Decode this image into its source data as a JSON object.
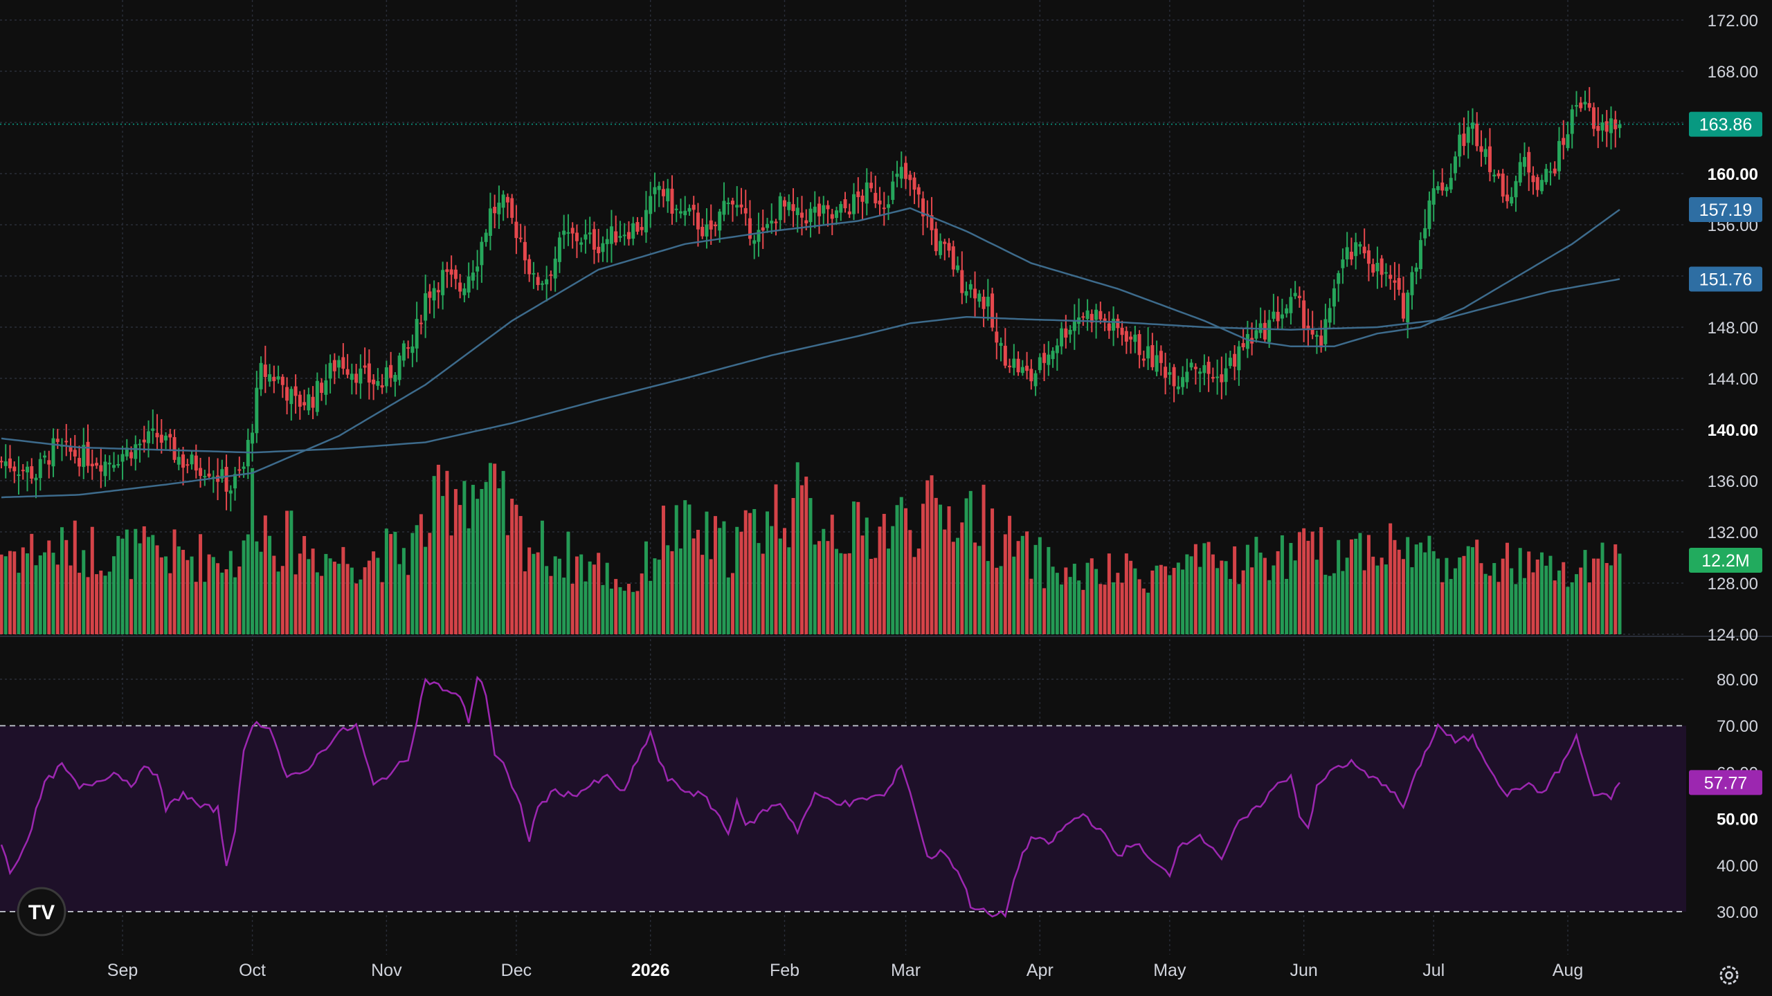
{
  "colors": {
    "background": "#0f0f0f",
    "grid": "#2a2e39",
    "up": "#26a65b",
    "down": "#e5484d",
    "sma_short": "#3d6b8c",
    "sma_long": "#3d6b8c",
    "rsi_line": "#9c27b0",
    "rsi_band": "#1e1029",
    "last_price_badge": "#089981",
    "volume_badge": "#22ab5e",
    "sma_badge": "#2e6ea3",
    "rsi_badge": "#9c27b0",
    "axis_text": "#d1d4dc"
  },
  "logo": {
    "text": "TV",
    "icon": "tradingview-logo-icon"
  },
  "settings": {
    "icon": "gear-icon"
  },
  "badges": {
    "last_price": "163.86",
    "sma_short": "157.19",
    "sma_long": "151.76",
    "volume": "12.2M",
    "rsi": "57.77"
  },
  "chart_data": {
    "type": "candlestick",
    "price_axis": {
      "ticks": [
        "172.00",
        "168.00",
        "164.00",
        "160.00",
        "156.00",
        "152.00",
        "148.00",
        "144.00",
        "140.00",
        "136.00",
        "132.00",
        "128.00",
        "124.00"
      ],
      "bold_ticks": [
        "160.00",
        "140.00"
      ],
      "ylim": [
        124,
        172
      ]
    },
    "time_axis": {
      "labels": [
        {
          "text": "Sep",
          "day": 30
        },
        {
          "text": "Oct",
          "day": 60
        },
        {
          "text": "Nov",
          "day": 91
        },
        {
          "text": "Dec",
          "day": 121
        },
        {
          "text": "2026",
          "day": 152,
          "bold": true
        },
        {
          "text": "Feb",
          "day": 183
        },
        {
          "text": "Mar",
          "day": 211
        },
        {
          "text": "Apr",
          "day": 242
        },
        {
          "text": "May",
          "day": 272
        },
        {
          "text": "Jun",
          "day": 303
        },
        {
          "text": "Jul",
          "day": 333
        },
        {
          "text": "Aug",
          "day": 364
        }
      ],
      "day_range": [
        2,
        376
      ]
    },
    "price_keypoints": [
      [
        3,
        137.5
      ],
      [
        10,
        136.5
      ],
      [
        14,
        138.5
      ],
      [
        20,
        138.0
      ],
      [
        26,
        137.5
      ],
      [
        32,
        138.5
      ],
      [
        38,
        139.5
      ],
      [
        44,
        137.5
      ],
      [
        50,
        137.0
      ],
      [
        55,
        135.5
      ],
      [
        58,
        137.0
      ],
      [
        60,
        140.5
      ],
      [
        62,
        144.5
      ],
      [
        66,
        144.0
      ],
      [
        70,
        142.0
      ],
      [
        74,
        142.5
      ],
      [
        80,
        145.5
      ],
      [
        86,
        144.0
      ],
      [
        90,
        143.5
      ],
      [
        94,
        145.5
      ],
      [
        97,
        146.5
      ],
      [
        100,
        150.5
      ],
      [
        104,
        152.0
      ],
      [
        108,
        151.0
      ],
      [
        112,
        153.5
      ],
      [
        115,
        157.0
      ],
      [
        118,
        157.5
      ],
      [
        122,
        155.0
      ],
      [
        125,
        151.5
      ],
      [
        128,
        152.0
      ],
      [
        132,
        155.0
      ],
      [
        136,
        155.0
      ],
      [
        140,
        154.5
      ],
      [
        145,
        155.5
      ],
      [
        150,
        156.0
      ],
      [
        154,
        159.0
      ],
      [
        158,
        157.0
      ],
      [
        162,
        156.5
      ],
      [
        166,
        155.0
      ],
      [
        170,
        158.5
      ],
      [
        174,
        156.0
      ],
      [
        178,
        155.0
      ],
      [
        182,
        157.5
      ],
      [
        186,
        156.5
      ],
      [
        190,
        157.0
      ],
      [
        194,
        156.5
      ],
      [
        198,
        157.5
      ],
      [
        202,
        158.5
      ],
      [
        206,
        158.0
      ],
      [
        210,
        160.0
      ],
      [
        213,
        158.5
      ],
      [
        216,
        156.5
      ],
      [
        218,
        154.5
      ],
      [
        221,
        153.5
      ],
      [
        224,
        151.5
      ],
      [
        227,
        151.0
      ],
      [
        230,
        149.5
      ],
      [
        232,
        146.5
      ],
      [
        235,
        145.5
      ],
      [
        238,
        144.5
      ],
      [
        240,
        144.0
      ],
      [
        243,
        145.5
      ],
      [
        247,
        147.5
      ],
      [
        251,
        149.0
      ],
      [
        255,
        149.0
      ],
      [
        258,
        148.0
      ],
      [
        262,
        147.5
      ],
      [
        266,
        146.0
      ],
      [
        270,
        145.0
      ],
      [
        274,
        144.0
      ],
      [
        277,
        145.5
      ],
      [
        280,
        144.5
      ],
      [
        283,
        144.0
      ],
      [
        287,
        145.5
      ],
      [
        290,
        147.0
      ],
      [
        293,
        147.5
      ],
      [
        297,
        149.0
      ],
      [
        301,
        150.0
      ],
      [
        305,
        147.5
      ],
      [
        307,
        146.0
      ],
      [
        310,
        151.5
      ],
      [
        313,
        153.5
      ],
      [
        317,
        154.0
      ],
      [
        320,
        152.5
      ],
      [
        323,
        151.5
      ],
      [
        326,
        149.5
      ],
      [
        328,
        152.0
      ],
      [
        331,
        156.5
      ],
      [
        334,
        159.5
      ],
      [
        336,
        159.0
      ],
      [
        339,
        162.5
      ],
      [
        342,
        163.5
      ],
      [
        345,
        162.0
      ],
      [
        348,
        159.0
      ],
      [
        351,
        158.5
      ],
      [
        354,
        161.0
      ],
      [
        357,
        159.5
      ],
      [
        360,
        160.0
      ],
      [
        363,
        162.5
      ],
      [
        366,
        165.5
      ],
      [
        368,
        166.0
      ],
      [
        370,
        163.0
      ],
      [
        372,
        163.5
      ],
      [
        374,
        164.0
      ],
      [
        376,
        163.86
      ]
    ],
    "sma_short_keypoints": [
      [
        2,
        134.7
      ],
      [
        20,
        134.9
      ],
      [
        40,
        135.7
      ],
      [
        60,
        136.6
      ],
      [
        80,
        139.5
      ],
      [
        100,
        143.5
      ],
      [
        120,
        148.5
      ],
      [
        140,
        152.5
      ],
      [
        160,
        154.5
      ],
      [
        180,
        155.5
      ],
      [
        200,
        156.3
      ],
      [
        212,
        157.3
      ],
      [
        225,
        155.5
      ],
      [
        240,
        153.0
      ],
      [
        260,
        151.0
      ],
      [
        280,
        148.5
      ],
      [
        290,
        147.0
      ],
      [
        300,
        146.5
      ],
      [
        310,
        146.5
      ],
      [
        320,
        147.5
      ],
      [
        330,
        148.0
      ],
      [
        340,
        149.5
      ],
      [
        355,
        152.5
      ],
      [
        365,
        154.5
      ],
      [
        376,
        157.19
      ]
    ],
    "sma_long_keypoints": [
      [
        2,
        139.3
      ],
      [
        20,
        138.6
      ],
      [
        40,
        138.4
      ],
      [
        60,
        138.2
      ],
      [
        80,
        138.5
      ],
      [
        100,
        139.0
      ],
      [
        120,
        140.5
      ],
      [
        140,
        142.3
      ],
      [
        160,
        144.0
      ],
      [
        180,
        145.8
      ],
      [
        200,
        147.3
      ],
      [
        212,
        148.3
      ],
      [
        225,
        148.8
      ],
      [
        240,
        148.6
      ],
      [
        260,
        148.4
      ],
      [
        280,
        148.0
      ],
      [
        300,
        147.8
      ],
      [
        320,
        148.0
      ],
      [
        335,
        148.6
      ],
      [
        345,
        149.5
      ],
      [
        360,
        150.8
      ],
      [
        376,
        151.76
      ]
    ],
    "volume_keypoints": [
      [
        2,
        5.0
      ],
      [
        20,
        5.2
      ],
      [
        40,
        4.8
      ],
      [
        58,
        4.6
      ],
      [
        60,
        8.5
      ],
      [
        64,
        6.0
      ],
      [
        80,
        4.5
      ],
      [
        96,
        5.0
      ],
      [
        108,
        9.5
      ],
      [
        116,
        8.0
      ],
      [
        124,
        5.5
      ],
      [
        140,
        4.0
      ],
      [
        148,
        2.8
      ],
      [
        156,
        6.5
      ],
      [
        170,
        5.2
      ],
      [
        184,
        8.0
      ],
      [
        200,
        6.0
      ],
      [
        212,
        7.0
      ],
      [
        226,
        7.5
      ],
      [
        238,
        4.8
      ],
      [
        250,
        3.5
      ],
      [
        270,
        3.8
      ],
      [
        290,
        4.5
      ],
      [
        308,
        5.0
      ],
      [
        320,
        5.5
      ],
      [
        336,
        4.6
      ],
      [
        350,
        4.2
      ],
      [
        366,
        3.6
      ],
      [
        376,
        4.6
      ]
    ],
    "volume_max": 10,
    "rsi_keypoints": [
      [
        2,
        45.0
      ],
      [
        4,
        38.0
      ],
      [
        8,
        45.5
      ],
      [
        12,
        57.5
      ],
      [
        16,
        61.5
      ],
      [
        20,
        56.5
      ],
      [
        24,
        58.0
      ],
      [
        28,
        60.0
      ],
      [
        32,
        57.5
      ],
      [
        36,
        61.5
      ],
      [
        38,
        59.0
      ],
      [
        40,
        52.0
      ],
      [
        44,
        55.5
      ],
      [
        48,
        52.5
      ],
      [
        52,
        52.0
      ],
      [
        54,
        40.0
      ],
      [
        56,
        48.0
      ],
      [
        58,
        64.0
      ],
      [
        60,
        70.5
      ],
      [
        64,
        70.0
      ],
      [
        68,
        58.5
      ],
      [
        72,
        60.0
      ],
      [
        76,
        64.5
      ],
      [
        80,
        68.5
      ],
      [
        84,
        70.0
      ],
      [
        88,
        57.0
      ],
      [
        92,
        60.0
      ],
      [
        96,
        63.0
      ],
      [
        100,
        80.0
      ],
      [
        104,
        78.0
      ],
      [
        108,
        76.0
      ],
      [
        110,
        71.0
      ],
      [
        112,
        80.5
      ],
      [
        114,
        77.0
      ],
      [
        116,
        64.0
      ],
      [
        118,
        62.0
      ],
      [
        120,
        56.5
      ],
      [
        122,
        52.5
      ],
      [
        124,
        45.5
      ],
      [
        126,
        52.5
      ],
      [
        130,
        56.0
      ],
      [
        134,
        55.0
      ],
      [
        138,
        57.0
      ],
      [
        142,
        59.0
      ],
      [
        146,
        55.5
      ],
      [
        148,
        60.5
      ],
      [
        150,
        64.5
      ],
      [
        152,
        68.5
      ],
      [
        154,
        62.5
      ],
      [
        156,
        58.5
      ],
      [
        160,
        56.0
      ],
      [
        164,
        55.0
      ],
      [
        168,
        50.5
      ],
      [
        170,
        46.5
      ],
      [
        172,
        54.5
      ],
      [
        174,
        48.0
      ],
      [
        178,
        51.5
      ],
      [
        182,
        53.5
      ],
      [
        186,
        47.5
      ],
      [
        190,
        55.0
      ],
      [
        194,
        54.0
      ],
      [
        198,
        53.0
      ],
      [
        202,
        54.5
      ],
      [
        206,
        55.0
      ],
      [
        208,
        57.5
      ],
      [
        210,
        62.0
      ],
      [
        213,
        52.5
      ],
      [
        216,
        41.5
      ],
      [
        220,
        43.0
      ],
      [
        224,
        37.0
      ],
      [
        226,
        31.5
      ],
      [
        228,
        30.5
      ],
      [
        231,
        29.0
      ],
      [
        234,
        29.5
      ],
      [
        237,
        40.0
      ],
      [
        240,
        46.0
      ],
      [
        244,
        44.5
      ],
      [
        248,
        48.5
      ],
      [
        252,
        51.0
      ],
      [
        256,
        47.5
      ],
      [
        260,
        42.0
      ],
      [
        264,
        45.0
      ],
      [
        268,
        40.5
      ],
      [
        272,
        38.0
      ],
      [
        274,
        44.0
      ],
      [
        278,
        46.5
      ],
      [
        282,
        44.0
      ],
      [
        284,
        41.5
      ],
      [
        288,
        49.0
      ],
      [
        292,
        52.0
      ],
      [
        296,
        56.5
      ],
      [
        300,
        59.5
      ],
      [
        302,
        51.0
      ],
      [
        304,
        48.0
      ],
      [
        306,
        56.5
      ],
      [
        310,
        61.0
      ],
      [
        314,
        62.0
      ],
      [
        318,
        59.0
      ],
      [
        322,
        57.5
      ],
      [
        326,
        52.5
      ],
      [
        330,
        62.0
      ],
      [
        334,
        70.0
      ],
      [
        338,
        66.5
      ],
      [
        342,
        67.5
      ],
      [
        346,
        61.0
      ],
      [
        350,
        55.0
      ],
      [
        354,
        57.5
      ],
      [
        358,
        55.5
      ],
      [
        362,
        60.5
      ],
      [
        366,
        67.5
      ],
      [
        370,
        55.0
      ],
      [
        374,
        54.5
      ],
      [
        376,
        57.77
      ]
    ],
    "rsi_axis": {
      "ticks": [
        "80.00",
        "70.00",
        "60.00",
        "50.00",
        "40.00",
        "30.00"
      ],
      "bold_ticks": [
        "50.00"
      ],
      "ylim": [
        24,
        87
      ],
      "band": [
        30,
        70
      ]
    },
    "last_price": 163.86,
    "sma_short_last": 157.19,
    "sma_long_last": 151.76,
    "volume_last": "12.2M",
    "rsi_last": 57.77
  }
}
